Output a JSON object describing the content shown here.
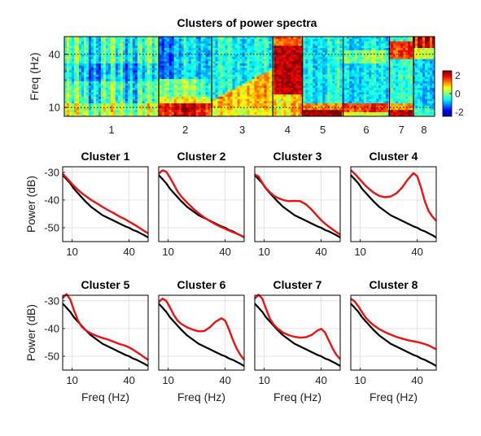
{
  "chart_data": [
    {
      "type": "heatmap",
      "title": "Clusters of power spectra",
      "ylabel": "Freq (Hz)",
      "ylim": [
        5,
        50
      ],
      "yticks": [
        10,
        40
      ],
      "cluster_labels": [
        "1",
        "2",
        "3",
        "4",
        "5",
        "6",
        "7",
        "8"
      ],
      "cluster_boundaries": [
        0.0,
        0.255,
        0.398,
        0.563,
        0.643,
        0.753,
        0.878,
        0.943,
        1.0
      ],
      "colorbar": {
        "ticks": [
          "2",
          "0",
          "-2"
        ],
        "range": [
          -2.5,
          2.5
        ]
      },
      "guide_lines_hz": [
        40,
        10
      ],
      "dotted_reference": "40 and 10 Hz"
    },
    {
      "type": "line",
      "layout": "2x4 grid",
      "xlabel": "Freq (Hz)",
      "ylabel": "Power (dB)",
      "xlim": [
        5,
        50
      ],
      "ylim": [
        -55,
        -28
      ],
      "xticks": [
        10,
        40
      ],
      "yticks": [
        -30,
        -40,
        -50
      ],
      "grid": true,
      "baseline_color": "#000000",
      "cluster_color": "#ee1111",
      "x": [
        5,
        7,
        9,
        11,
        13,
        15,
        17,
        20,
        23,
        26,
        29,
        32,
        35,
        38,
        40,
        42,
        44,
        46,
        48,
        50
      ],
      "baseline": [
        -31,
        -32.5,
        -34,
        -36,
        -37.5,
        -39,
        -40.5,
        -42.5,
        -44,
        -45.5,
        -46.5,
        -47.5,
        -48.5,
        -49.5,
        -50,
        -50.8,
        -51.3,
        -52,
        -52.7,
        -53.5
      ],
      "panels": [
        {
          "title": "Cluster 1",
          "values": [
            -30.5,
            -32,
            -33.5,
            -35,
            -36.3,
            -37.5,
            -38.5,
            -40,
            -41.2,
            -42.5,
            -43.7,
            -44.8,
            -46,
            -47,
            -47.8,
            -48.6,
            -49.4,
            -50.3,
            -51.2,
            -52
          ]
        },
        {
          "title": "Cluster 2",
          "values": [
            -30.5,
            -29.3,
            -29.8,
            -32,
            -34.5,
            -37,
            -38.8,
            -41,
            -43,
            -44.8,
            -46.3,
            -47.6,
            -48.8,
            -49.8,
            -50.4,
            -51,
            -51.6,
            -52.1,
            -52.7,
            -53.3
          ]
        },
        {
          "title": "Cluster 3",
          "values": [
            -30.8,
            -31.5,
            -33.8,
            -35.8,
            -37.2,
            -38.4,
            -39.2,
            -40,
            -40.4,
            -40.3,
            -40.4,
            -41.6,
            -43.5,
            -45.8,
            -47.3,
            -48.5,
            -49.6,
            -50.6,
            -51.6,
            -52.5
          ]
        },
        {
          "title": "Cluster 4",
          "values": [
            -29.2,
            -30.5,
            -32,
            -33.5,
            -35,
            -36.2,
            -37.3,
            -38.5,
            -39,
            -38.7,
            -37.6,
            -35.5,
            -32.6,
            -30.3,
            -31.5,
            -35.5,
            -40.5,
            -44,
            -46,
            -47.5
          ]
        },
        {
          "title": "Cluster 5",
          "values": [
            -29,
            -27.6,
            -29.5,
            -33.5,
            -37,
            -39.3,
            -40.6,
            -41.8,
            -42.7,
            -43.4,
            -44,
            -44.8,
            -45.6,
            -46.2,
            -46.8,
            -47.6,
            -48.5,
            -49.4,
            -50.4,
            -51.3
          ]
        },
        {
          "title": "Cluster 6",
          "values": [
            -30.4,
            -29.2,
            -30,
            -32.5,
            -35.2,
            -37.2,
            -38.4,
            -39.6,
            -40.4,
            -41,
            -40.9,
            -39.5,
            -37.5,
            -36.3,
            -37.2,
            -40.3,
            -44,
            -47.2,
            -49.5,
            -51.3
          ]
        },
        {
          "title": "Cluster 7",
          "values": [
            -29.2,
            -27.8,
            -29.2,
            -33,
            -36.5,
            -38.6,
            -40,
            -41.5,
            -42.4,
            -43,
            -43.3,
            -43.1,
            -42.3,
            -40.7,
            -40.1,
            -41.4,
            -44.3,
            -47.2,
            -49.5,
            -51
          ]
        },
        {
          "title": "Cluster 8",
          "values": [
            -29.2,
            -30.2,
            -32,
            -34.2,
            -36.2,
            -37.6,
            -38.8,
            -40.2,
            -41.3,
            -42.2,
            -43,
            -43.6,
            -44.2,
            -44.6,
            -44.9,
            -45.2,
            -45.6,
            -46.1,
            -46.8,
            -47.5
          ]
        }
      ]
    }
  ]
}
